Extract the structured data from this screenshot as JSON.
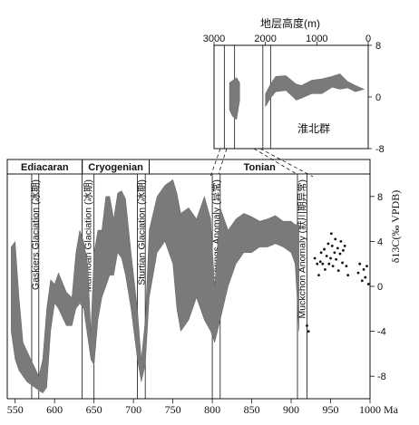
{
  "chart_data": [
    {
      "type": "area",
      "xunit": "Ma",
      "xlim": [
        540,
        1000
      ],
      "xticks": [
        550,
        600,
        650,
        700,
        750,
        800,
        850,
        900,
        950,
        1000
      ],
      "ylabel": "δ13C(‰ VPDB)",
      "ylim": [
        -10,
        10
      ],
      "yticks": [
        -8,
        -4,
        0,
        4,
        8
      ],
      "periods": [
        {
          "name": "Ediacaran",
          "from": 540,
          "to": 635
        },
        {
          "name": "Cryogenian",
          "from": 635,
          "to": 720
        },
        {
          "name": "Tonian",
          "from": 720,
          "to": 1000
        }
      ],
      "events": [
        {
          "label": "Gaskiers Glaciation (冰期)",
          "from": 571,
          "to": 580
        },
        {
          "label": "Marinoan Glaciation (冰期)",
          "from": 635,
          "to": 650
        },
        {
          "label": "Sturtian Glaciation (冰期)",
          "from": 705,
          "to": 715
        },
        {
          "label": "Bitter Springs Anomaly (异常)",
          "from": 800,
          "to": 810
        },
        {
          "label": "Muckchon Anomaly (默川期异常)",
          "from": 908,
          "to": 920
        }
      ],
      "band_upper": [
        [
          545,
          3.5
        ],
        [
          550,
          4.0
        ],
        [
          555,
          -1
        ],
        [
          560,
          -5
        ],
        [
          570,
          -6.5
        ],
        [
          580,
          -8
        ],
        [
          585,
          -6.5
        ],
        [
          590,
          -2
        ],
        [
          595,
          0.6
        ],
        [
          600,
          0.2
        ],
        [
          605,
          1.2
        ],
        [
          615,
          -0.5
        ],
        [
          622,
          -1
        ],
        [
          627,
          3
        ],
        [
          632,
          5
        ],
        [
          637,
          4
        ],
        [
          642,
          2
        ],
        [
          646,
          -4
        ],
        [
          650,
          3
        ],
        [
          655,
          5
        ],
        [
          660,
          5
        ],
        [
          665,
          8
        ],
        [
          670,
          8
        ],
        [
          675,
          6
        ],
        [
          680,
          8.3
        ],
        [
          685,
          8.5
        ],
        [
          690,
          7.8
        ],
        [
          697,
          3
        ],
        [
          705,
          -2
        ],
        [
          710,
          -6.5
        ],
        [
          715,
          -3
        ],
        [
          720,
          5
        ],
        [
          730,
          8
        ],
        [
          740,
          9
        ],
        [
          750,
          9.5
        ],
        [
          755,
          8.3
        ],
        [
          760,
          6.5
        ],
        [
          770,
          7
        ],
        [
          780,
          6
        ],
        [
          790,
          8
        ],
        [
          798,
          6
        ],
        [
          803,
          0
        ],
        [
          810,
          7
        ],
        [
          820,
          5
        ],
        [
          830,
          6
        ],
        [
          840,
          6.5
        ],
        [
          850,
          6.2
        ],
        [
          860,
          5.8
        ],
        [
          870,
          6
        ],
        [
          880,
          6.3
        ],
        [
          890,
          5.8
        ],
        [
          900,
          5.8
        ],
        [
          905,
          5.5
        ],
        [
          910,
          5.5
        ]
      ],
      "band_lower": [
        [
          545,
          -4
        ],
        [
          550,
          -6.5
        ],
        [
          555,
          -7.5
        ],
        [
          565,
          -8.5
        ],
        [
          575,
          -9
        ],
        [
          585,
          -9.5
        ],
        [
          590,
          -9
        ],
        [
          595,
          -4
        ],
        [
          600,
          -1.5
        ],
        [
          605,
          -2
        ],
        [
          615,
          -3.5
        ],
        [
          622,
          -3.5
        ],
        [
          627,
          -2
        ],
        [
          632,
          -1.5
        ],
        [
          637,
          -2
        ],
        [
          642,
          -4.5
        ],
        [
          646,
          -6.5
        ],
        [
          650,
          -7
        ],
        [
          655,
          -3
        ],
        [
          660,
          -1
        ],
        [
          665,
          0
        ],
        [
          670,
          1
        ],
        [
          675,
          1
        ],
        [
          680,
          3
        ],
        [
          685,
          2.5
        ],
        [
          690,
          1
        ],
        [
          697,
          -2
        ],
        [
          705,
          -6.5
        ],
        [
          710,
          -8.5
        ],
        [
          715,
          -7
        ],
        [
          720,
          -1
        ],
        [
          730,
          3
        ],
        [
          740,
          4
        ],
        [
          750,
          2
        ],
        [
          755,
          -2
        ],
        [
          760,
          -4
        ],
        [
          770,
          -3
        ],
        [
          780,
          -1
        ],
        [
          790,
          -3
        ],
        [
          798,
          -4
        ],
        [
          803,
          -5
        ],
        [
          810,
          -3
        ],
        [
          820,
          0
        ],
        [
          830,
          2
        ],
        [
          840,
          3
        ],
        [
          850,
          3
        ],
        [
          860,
          3.5
        ],
        [
          870,
          3.5
        ],
        [
          880,
          3.8
        ],
        [
          890,
          3.5
        ],
        [
          900,
          3
        ],
        [
          905,
          2
        ],
        [
          910,
          -4
        ]
      ],
      "points": [
        [
          920,
          -3.5
        ],
        [
          922,
          -4
        ],
        [
          930,
          2.5
        ],
        [
          933,
          2.0
        ],
        [
          935,
          1.0
        ],
        [
          937,
          2.2
        ],
        [
          938,
          3.0
        ],
        [
          940,
          2.0
        ],
        [
          942,
          3.3
        ],
        [
          943,
          1.5
        ],
        [
          945,
          2.7
        ],
        [
          947,
          3.8
        ],
        [
          948,
          2.0
        ],
        [
          950,
          2.5
        ],
        [
          951,
          4.7
        ],
        [
          952,
          3.6
        ],
        [
          953,
          1.8
        ],
        [
          955,
          3.0
        ],
        [
          956,
          4.2
        ],
        [
          957,
          2.4
        ],
        [
          959,
          3.4
        ],
        [
          960,
          1.4
        ],
        [
          962,
          2.9
        ],
        [
          963,
          4.0
        ],
        [
          965,
          2.1
        ],
        [
          966,
          3.2
        ],
        [
          968,
          3.6
        ],
        [
          970,
          1.8
        ],
        [
          972,
          1.0
        ],
        [
          985,
          1.2
        ],
        [
          987,
          2.0
        ],
        [
          990,
          0.5
        ],
        [
          992,
          1.5
        ],
        [
          994,
          0.8
        ],
        [
          996,
          1.8
        ],
        [
          998,
          0.2
        ]
      ]
    },
    {
      "type": "area",
      "title": "地层高度(m)",
      "xlim": [
        3000,
        0
      ],
      "xticks": [
        3000,
        2000,
        1000,
        0
      ],
      "ylim": [
        -8,
        8
      ],
      "yticks": [
        8,
        0,
        -8
      ],
      "annotation": "淮北群",
      "markers": [
        2800,
        2600,
        2050,
        1900
      ],
      "band_a_upper": [
        [
          2700,
          2.2
        ],
        [
          2560,
          3.0
        ],
        [
          2500,
          2.2
        ]
      ],
      "band_a_lower": [
        [
          2700,
          -2.0
        ],
        [
          2640,
          -3.0
        ],
        [
          2560,
          -3.5
        ],
        [
          2500,
          -0.5
        ]
      ],
      "band_b_upper": [
        [
          2000,
          0.5
        ],
        [
          1900,
          2.0
        ],
        [
          1800,
          3.2
        ],
        [
          1600,
          3.3
        ],
        [
          1400,
          2.0
        ],
        [
          1300,
          1.8
        ],
        [
          1100,
          2.6
        ],
        [
          900,
          2.8
        ],
        [
          700,
          3.2
        ],
        [
          550,
          3.6
        ],
        [
          400,
          2.4
        ],
        [
          250,
          1.8
        ],
        [
          80,
          1.2
        ]
      ],
      "band_b_lower": [
        [
          2000,
          -1.5
        ],
        [
          1900,
          -0.2
        ],
        [
          1800,
          0.8
        ],
        [
          1600,
          1.0
        ],
        [
          1400,
          -0.5
        ],
        [
          1300,
          -0.2
        ],
        [
          1100,
          0.5
        ],
        [
          900,
          0.5
        ],
        [
          700,
          1.5
        ],
        [
          550,
          1.2
        ],
        [
          400,
          1.4
        ],
        [
          250,
          0.8
        ],
        [
          80,
          1.2
        ]
      ]
    }
  ]
}
